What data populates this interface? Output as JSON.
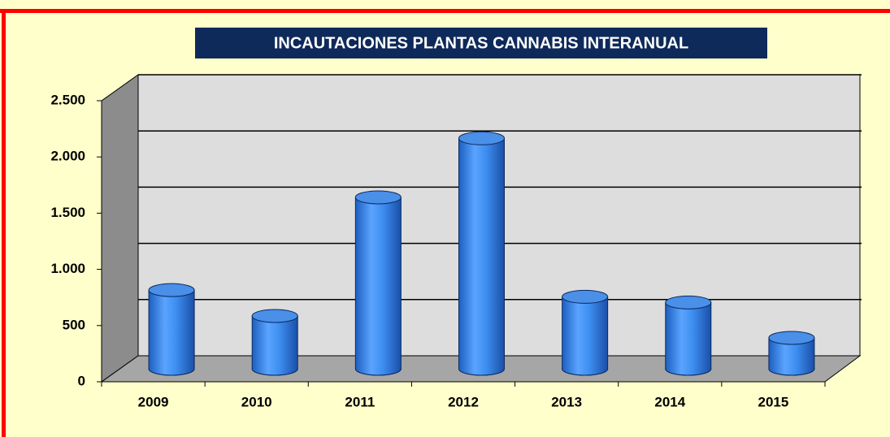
{
  "chart_data": {
    "type": "bar",
    "title": "INCAUTACIONES  PLANTAS CANNABIS INTERANUAL",
    "categories": [
      "2009",
      "2010",
      "2011",
      "2012",
      "2013",
      "2014",
      "2015"
    ],
    "values": [
      700,
      470,
      1525,
      2050,
      640,
      590,
      275
    ],
    "color": "#3d8ef0",
    "ylim": [
      0,
      2500
    ],
    "yticks": [
      0,
      500,
      {
        "value": 1000,
        "label": "1.000"
      },
      {
        "value": 1500,
        "label": "1.500"
      },
      {
        "value": 2000,
        "label": "2.000"
      },
      {
        "value": 2500,
        "label": "2.500"
      }
    ],
    "grid": true
  }
}
